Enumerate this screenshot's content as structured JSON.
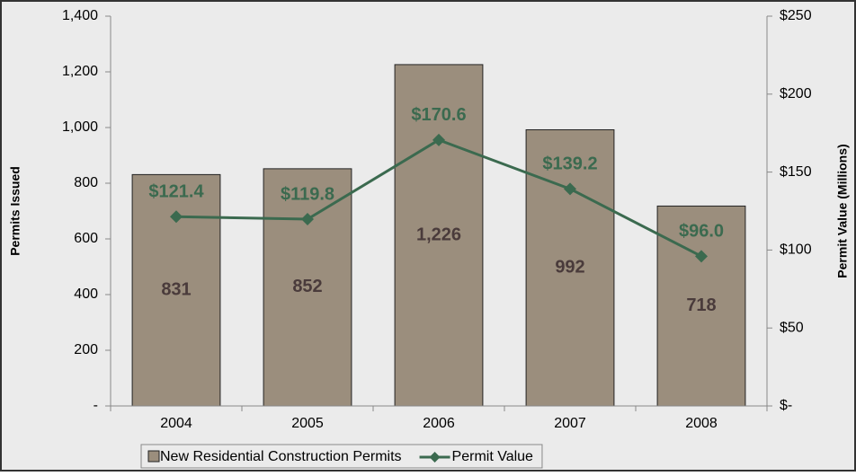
{
  "chart_data": {
    "type": "bar",
    "categories": [
      "2004",
      "2005",
      "2006",
      "2007",
      "2008"
    ],
    "series": [
      {
        "name": "New Residential Construction Permits",
        "type": "bar",
        "color": "#9b8e7d",
        "values": [
          831,
          852,
          1226,
          992,
          718
        ],
        "value_labels": [
          "831",
          "852",
          "1,226",
          "992",
          "718"
        ]
      },
      {
        "name": "Permit Value",
        "type": "line",
        "axis": "y2",
        "color": "#3b6a4f",
        "values": [
          121.4,
          119.8,
          170.6,
          139.2,
          96.0
        ],
        "value_labels": [
          "$121.4",
          "$119.8",
          "$170.6",
          "$139.2",
          "$96.0"
        ]
      }
    ],
    "ylabel": "Permits Issued",
    "y2label": "Permit Value (Millions)",
    "ylim": [
      0,
      1400
    ],
    "yticks": [
      {
        "value": 0,
        "label": "-"
      },
      200,
      400,
      600,
      800,
      {
        "value": 1000,
        "label": "1,000"
      },
      {
        "value": 1200,
        "label": "1,200"
      },
      {
        "value": 1400,
        "label": "1,400"
      }
    ],
    "y2lim": [
      0,
      250
    ],
    "y2ticks": [
      {
        "value": 0,
        "label": "$-"
      },
      {
        "value": 50,
        "label": "$50"
      },
      {
        "value": 100,
        "label": "$100"
      },
      {
        "value": 150,
        "label": "$150"
      },
      {
        "value": 200,
        "label": "$200"
      },
      {
        "value": 250,
        "label": "$250"
      }
    ],
    "grid": false,
    "legend": "bottom"
  }
}
